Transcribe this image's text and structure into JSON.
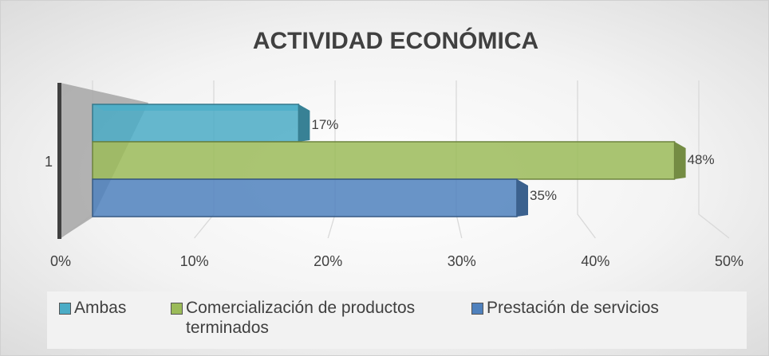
{
  "chart_data": {
    "type": "bar3d_horizontal",
    "title": "ACTIVIDAD ECONÓMICA",
    "categories": [
      "1"
    ],
    "series": [
      {
        "name": "Ambas",
        "color": "#4bacc6",
        "values": [
          17
        ],
        "value_labels": [
          "17%"
        ]
      },
      {
        "name": "Comercialización de productos terminados",
        "color": "#9bbb59",
        "values": [
          48
        ],
        "value_labels": [
          "48%"
        ]
      },
      {
        "name": "Prestación de servicios",
        "color": "#4f81bd",
        "values": [
          35
        ],
        "value_labels": [
          "35%"
        ]
      }
    ],
    "xlim": [
      0,
      50
    ],
    "xticks": [
      {
        "value": 0,
        "label": "0%"
      },
      {
        "value": 10,
        "label": "10%"
      },
      {
        "value": 20,
        "label": "20%"
      },
      {
        "value": 30,
        "label": "30%"
      },
      {
        "value": 40,
        "label": "40%"
      },
      {
        "value": 50,
        "label": "50%"
      }
    ],
    "grid": true,
    "legend": "bottom"
  }
}
